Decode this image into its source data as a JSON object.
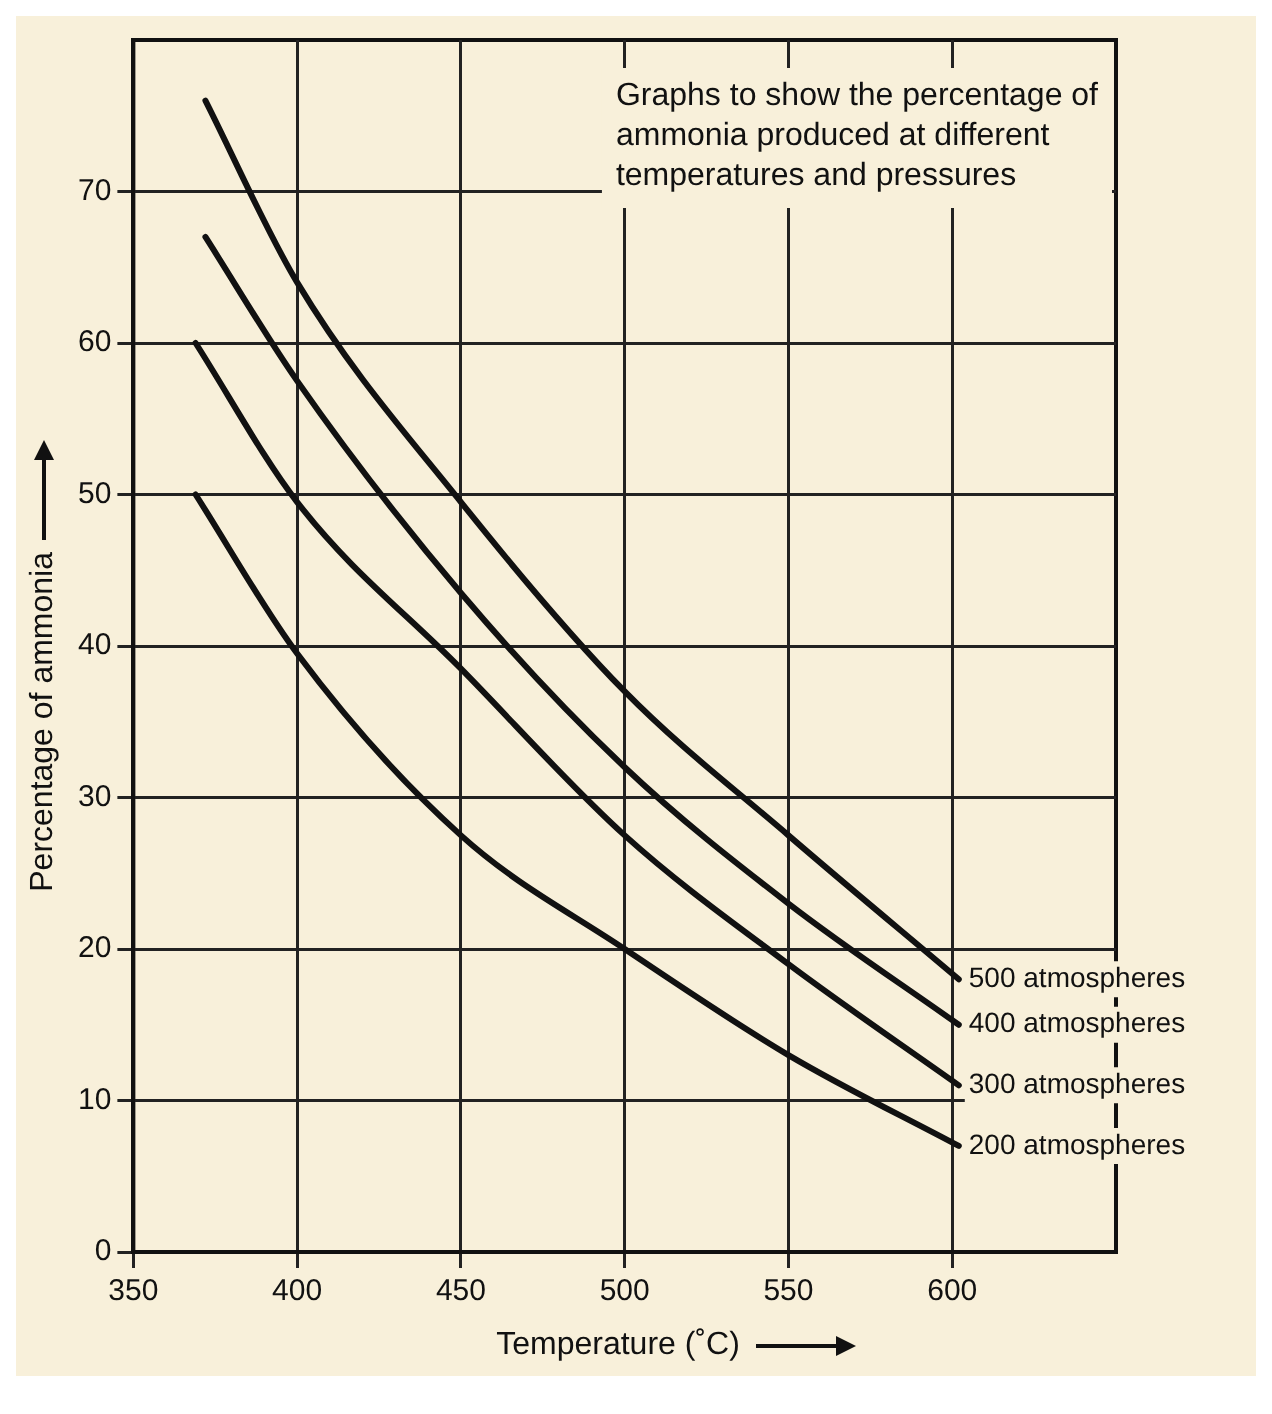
{
  "chart_data": {
    "type": "line",
    "xlabel": "Temperature (˚C)",
    "ylabel": "Percentage of ammonia",
    "annotations": [
      "Graphs to show the percentage of ammonia produced at different temperatures and pressures"
    ],
    "series": [
      {
        "name": "500 atmospheres",
        "color": "#111111",
        "x": [
          372,
          400,
          450,
          500,
          550,
          602
        ],
        "values": [
          76,
          64,
          49.5,
          37,
          27.5,
          18
        ]
      },
      {
        "name": "400 atmospheres",
        "color": "#111111",
        "x": [
          372,
          400,
          450,
          500,
          550,
          602
        ],
        "values": [
          67,
          57.5,
          43.5,
          32,
          23,
          15
        ]
      },
      {
        "name": "300 atmospheres",
        "color": "#111111",
        "x": [
          369,
          400,
          450,
          500,
          550,
          602
        ],
        "values": [
          60,
          49.5,
          38.5,
          27.5,
          19,
          11
        ]
      },
      {
        "name": "200 atmospheres",
        "color": "#111111",
        "x": [
          369,
          400,
          450,
          500,
          550,
          602
        ],
        "values": [
          50,
          39.5,
          27.5,
          20,
          13,
          7
        ]
      }
    ],
    "xlim": [
      350,
      650
    ],
    "xticks": [
      350,
      400,
      450,
      500,
      550,
      600
    ],
    "ylim": [
      0,
      80
    ],
    "yticks": [
      0,
      10,
      20,
      30,
      40,
      50,
      60,
      70
    ],
    "grid": true,
    "legend": false,
    "marker": "none",
    "line_style": "solid"
  }
}
